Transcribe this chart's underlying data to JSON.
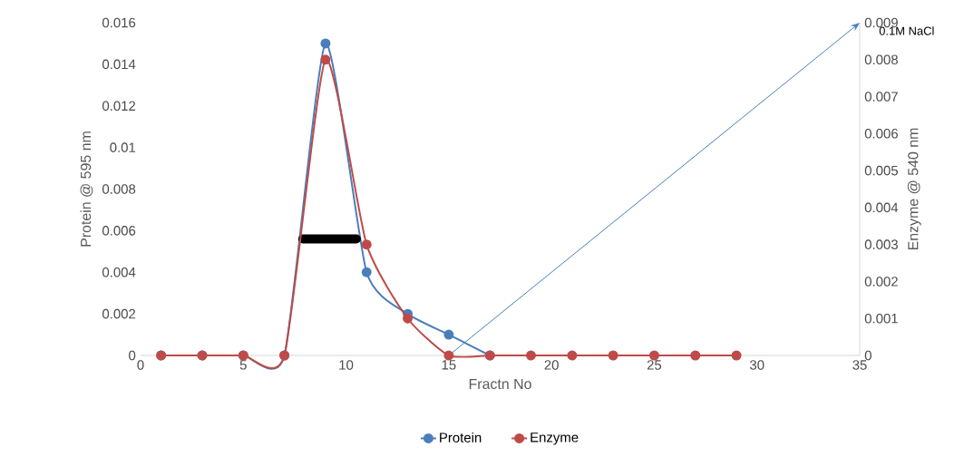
{
  "chart_data": {
    "type": "line",
    "xlabel": "Fractn No",
    "ylabel": "Protein @ 595 nm",
    "y2label": "Enzyme @ 540 nm",
    "series": [
      {
        "name": "Protein",
        "color": "#4a7ebb",
        "x": [
          1,
          3,
          5,
          7,
          9,
          11,
          13,
          15,
          17
        ],
        "values": [
          0,
          0,
          0,
          0,
          0.015,
          0.004,
          0.002,
          0.001,
          0
        ]
      },
      {
        "name": "Enzyme",
        "color": "#be4b48",
        "axis": "y2",
        "x": [
          1,
          3,
          5,
          7,
          9,
          11,
          13,
          15,
          17,
          19,
          21,
          23,
          25,
          27,
          29
        ],
        "values": [
          0,
          0,
          0,
          0,
          0.008,
          0.003,
          0.001,
          0,
          0,
          0,
          0,
          0,
          0,
          0,
          0
        ]
      },
      {
        "type": "line",
        "color": "#000000",
        "marker": "none",
        "x": [
          7.9,
          10.5
        ],
        "values": [
          0.0056,
          0.0056
        ]
      }
    ],
    "xlim": [
      0,
      35
    ],
    "xticks": [
      0,
      5,
      10,
      15,
      20,
      25,
      30,
      35
    ],
    "ylim": [
      0,
      0.016
    ],
    "yticks": [
      0,
      0.002,
      0.004,
      0.006,
      0.008,
      0.01,
      0.012,
      0.014,
      0.016
    ],
    "y2lim": [
      0,
      0.009
    ],
    "y2ticks": [
      0,
      0.001,
      0.002,
      0.003,
      0.004,
      0.005,
      0.006,
      0.007,
      0.008,
      0.009
    ],
    "annotations": [
      "0.1M NaCl"
    ],
    "marker": "circle",
    "legend": "bottom",
    "grid": false
  }
}
